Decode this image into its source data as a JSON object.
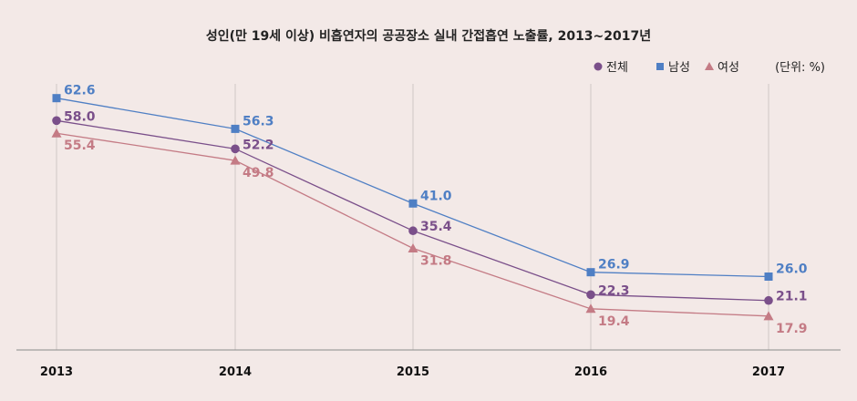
{
  "chart_data": {
    "type": "line",
    "title": "성인(만 19세 이상) 비흡연자의 공공장소 실내 간접흡연 노출률, 2013~2017년",
    "unit": "(단위: %)",
    "categories": [
      "2013",
      "2014",
      "2015",
      "2016",
      "2017"
    ],
    "series": [
      {
        "name": "전체",
        "color": "#7a4f8a",
        "marker": "circle",
        "values": [
          58.0,
          52.2,
          35.4,
          22.3,
          21.1
        ]
      },
      {
        "name": "남성",
        "color": "#4f7fc4",
        "marker": "square",
        "values": [
          62.6,
          56.3,
          41.0,
          26.9,
          26.0
        ]
      },
      {
        "name": "여성",
        "color": "#c47b85",
        "marker": "triangle",
        "values": [
          55.4,
          49.8,
          31.8,
          19.4,
          17.9
        ]
      }
    ],
    "ylim": [
      10,
      66
    ],
    "legend_position": "top-right",
    "grid": "vertical",
    "data_labels": true
  }
}
